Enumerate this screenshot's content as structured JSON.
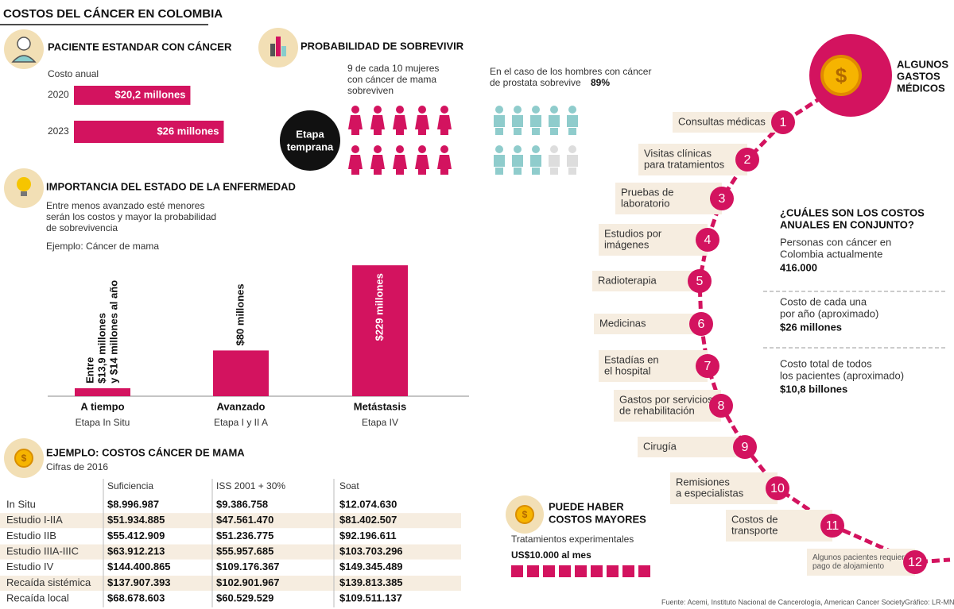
{
  "title": "COSTOS DEL CÁNCER EN COLOMBIA",
  "patient": {
    "heading": "PACIENTE ESTANDAR CON CÁNCER",
    "subheading": "Costo anual",
    "bars": [
      {
        "year": "2020",
        "value": 20.2,
        "label": "$20,2 millones"
      },
      {
        "year": "2023",
        "value": 26,
        "label": "$26 millones"
      }
    ]
  },
  "survival": {
    "heading": "PROBABILIDAD DE SOBREVIVIR",
    "women_text": [
      "9 de cada 10 mujeres",
      "con cáncer de mama",
      "sobreviven"
    ],
    "stage": [
      "Etapa",
      "temprana"
    ],
    "men_text": [
      "En el caso de los hombres con cáncer",
      "de prostata sobrevive"
    ],
    "men_pct": "89%"
  },
  "disease_stage": {
    "heading": "IMPORTANCIA DEL ESTADO DE LA ENFERMEDAD",
    "text": [
      "Entre menos avanzado esté menores",
      "serán los costos y mayor la probabilidad",
      "de sobrevivencia"
    ],
    "example": "Ejemplo: Cáncer de mama",
    "bars": [
      {
        "name": "A tiempo",
        "sub": "Etapa In Situ",
        "value": 14,
        "value_label": [
          "Entre",
          "$13,9 millones",
          "y $14 millones al año"
        ]
      },
      {
        "name": "Avanzado",
        "sub": "Etapa I y II A",
        "value": 80,
        "value_label": [
          "$80 millones"
        ]
      },
      {
        "name": "Metástasis",
        "sub": "Etapa IV",
        "value": 229,
        "value_label": [
          "$229 millones"
        ]
      }
    ]
  },
  "table": {
    "heading": "EJEMPLO: COSTOS CÁNCER DE MAMA",
    "note": "Cifras de 2016",
    "columns": [
      "Suficiencia",
      "ISS 2001 + 30%",
      "Soat"
    ],
    "rows": [
      {
        "name": "In Situ",
        "values": [
          "$8.996.987",
          "$9.386.758",
          "$12.074.630"
        ]
      },
      {
        "name": "Estudio I-IIA",
        "values": [
          "$51.934.885",
          "$47.561.470",
          "$81.402.507"
        ]
      },
      {
        "name": "Estudio IIB",
        "values": [
          "$55.412.909",
          "$51.236.775",
          "$92.196.611"
        ]
      },
      {
        "name": "Estudio IIIA-IIIC",
        "values": [
          "$63.912.213",
          "$55.957.685",
          "$103.703.296"
        ]
      },
      {
        "name": "Estudio IV",
        "values": [
          "$144.400.865",
          "$109.176.367",
          "$149.345.489"
        ]
      },
      {
        "name": "Recaída sistémica",
        "values": [
          "$137.907.393",
          "$102.901.967",
          "$139.813.385"
        ]
      },
      {
        "name": "Recaída local",
        "values": [
          "$68.678.603",
          "$60.529.529",
          "$109.511.137"
        ]
      }
    ]
  },
  "expenses": {
    "heading": [
      "ALGUNOS",
      "GASTOS",
      "MÉDICOS"
    ],
    "items": [
      {
        "number": 1,
        "label": [
          "Consultas médicas"
        ]
      },
      {
        "number": 2,
        "label": [
          "Visitas clínicas",
          "para tratamientos"
        ]
      },
      {
        "number": 3,
        "label": [
          "Pruebas de",
          "laboratorio"
        ]
      },
      {
        "number": 4,
        "label": [
          "Estudios por",
          "imágenes"
        ]
      },
      {
        "number": 5,
        "label": [
          "Radioterapia"
        ]
      },
      {
        "number": 6,
        "label": [
          "Medicinas"
        ]
      },
      {
        "number": 7,
        "label": [
          "Estadías en",
          "el hospital"
        ]
      },
      {
        "number": 8,
        "label": [
          "Gastos por servicios",
          "de rehabilitación"
        ]
      },
      {
        "number": 9,
        "label": [
          "Cirugía"
        ]
      },
      {
        "number": 10,
        "label": [
          "Remisiones",
          "a especialistas"
        ]
      },
      {
        "number": 11,
        "label": [
          "Costos de",
          "transporte"
        ]
      },
      {
        "number": 12,
        "label": [
          "Algunos pacientes requieren",
          "pago de alojamiento"
        ]
      }
    ]
  },
  "annual": {
    "heading": [
      "¿CUÁLES SON LOS COSTOS",
      "ANUALES EN CONJUNTO?"
    ],
    "items": [
      {
        "label": [
          "Personas con cáncer en",
          "Colombia actualmente"
        ],
        "value": "416.000"
      },
      {
        "label": [
          "Costo de cada una",
          "por año (aproximado)"
        ],
        "value": "$26 millones"
      },
      {
        "label": [
          "Costo total de todos",
          "los pacientes (aproximado)"
        ],
        "value": "$10,8 billones"
      }
    ]
  },
  "higher": {
    "heading": [
      "PUEDE HABER",
      "COSTOS MAYORES"
    ],
    "text": "Tratamientos experimentales",
    "value": "US$10.000 al mes"
  },
  "footer": {
    "source": "Fuente: Acemi, Instituto Nacional de Cancerología, American Cancer Society",
    "credit": "Gráfico: LR-MN"
  }
}
